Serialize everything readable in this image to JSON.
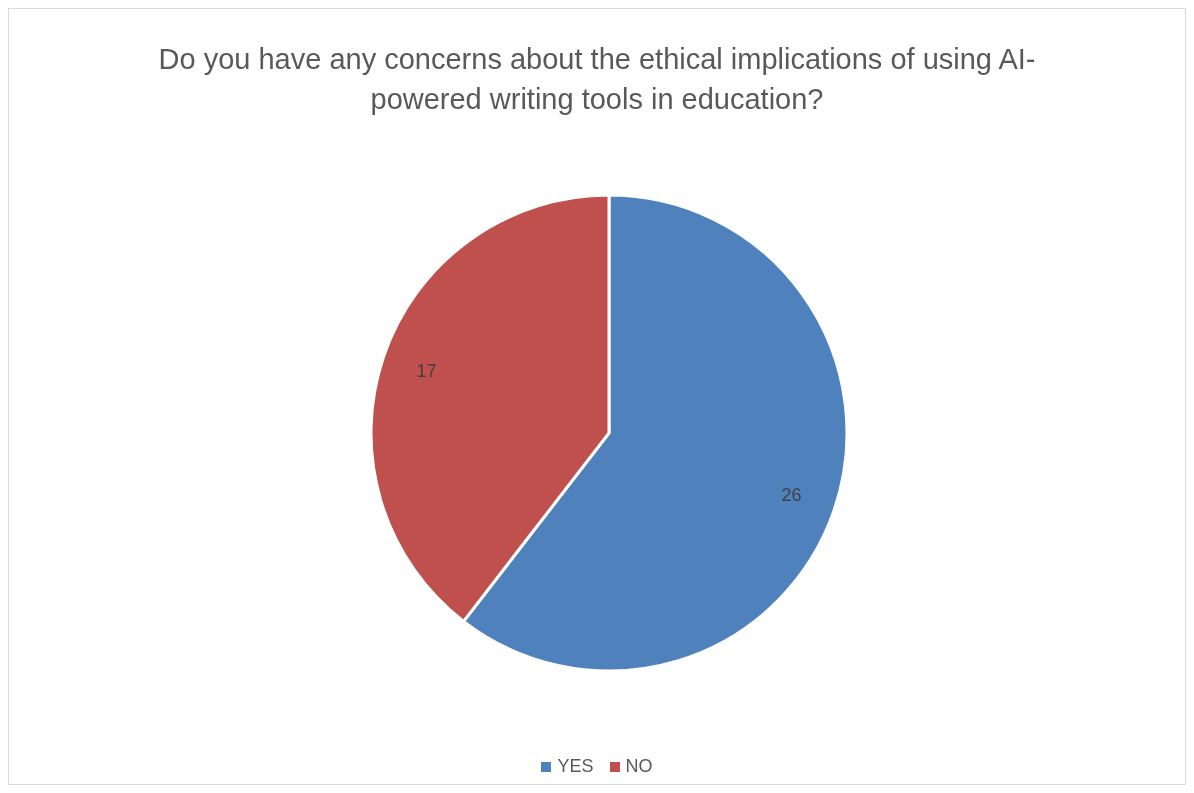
{
  "chart_data": {
    "type": "pie",
    "title": "Do you have any concerns about the ethical implications of using AI-powered writing tools in education?",
    "categories": [
      "YES",
      "NO"
    ],
    "values": [
      26,
      17
    ],
    "colors": [
      "#4f81bd",
      "#c0504d"
    ],
    "data_labels": true,
    "legend": "bottom"
  }
}
